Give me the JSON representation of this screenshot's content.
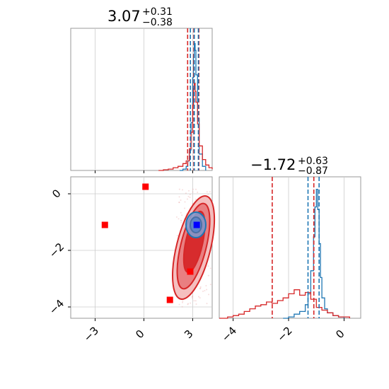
{
  "chart_data": [
    {
      "type": "histogram",
      "panel": "top-left",
      "title": {
        "value": "3.07",
        "plus": "+0.31",
        "minus": "−0.38"
      },
      "xlim": [
        -4.5,
        4.2
      ],
      "series": [
        {
          "name": "",
          "color": "#1f77b4",
          "peak_x": 3.1,
          "bins_x": [
            2.2,
            2.4,
            2.6,
            2.7,
            2.8,
            2.9,
            3.0,
            3.05,
            3.1,
            3.15,
            3.2,
            3.3,
            3.4,
            3.6,
            3.8
          ],
          "bins_y": [
            0,
            0.01,
            0.03,
            0.07,
            0.15,
            0.35,
            0.68,
            0.85,
            0.93,
            0.88,
            0.7,
            0.38,
            0.12,
            0.03,
            0
          ]
        },
        {
          "name": "",
          "color": "#d62728",
          "bins_x": [
            0.9,
            1.2,
            1.5,
            1.8,
            2.1,
            2.4,
            2.6,
            2.8,
            2.9,
            3.0,
            3.05,
            3.1,
            3.15,
            3.2,
            3.3,
            3.4,
            3.6,
            3.8,
            4.0,
            4.2
          ],
          "bins_y": [
            0,
            0.005,
            0.01,
            0.02,
            0.03,
            0.05,
            0.07,
            0.16,
            0.28,
            0.48,
            0.6,
            0.64,
            0.58,
            0.5,
            0.34,
            0.18,
            0.08,
            0.04,
            0.02,
            0.01
          ]
        }
      ],
      "vlines": [
        {
          "x": 2.69,
          "color": "#d62728"
        },
        {
          "x": 3.07,
          "color": "#d62728"
        },
        {
          "x": 3.38,
          "color": "#d62728"
        },
        {
          "x": 2.86,
          "color": "#1f77b4"
        },
        {
          "x": 3.1,
          "color": "#1f77b4"
        },
        {
          "x": 3.35,
          "color": "#1f77b4"
        }
      ]
    },
    {
      "type": "contour",
      "panel": "bottom-left",
      "xlim": [
        -4.5,
        4.2
      ],
      "ylim": [
        -4.4,
        0.6
      ],
      "xticks": [
        -3,
        0,
        3
      ],
      "xtick_labels": [
        "−3",
        "0",
        "3"
      ],
      "yticks": [
        -4,
        -2,
        0
      ],
      "ytick_labels": [
        "−4",
        "−2",
        "0"
      ],
      "markers": [
        {
          "x": -2.4,
          "y": -1.1,
          "color": "#ff0000"
        },
        {
          "x": 0.1,
          "y": 0.25,
          "color": "#ff0000"
        },
        {
          "x": 2.85,
          "y": -2.75,
          "color": "#ff0000"
        },
        {
          "x": 1.6,
          "y": -3.75,
          "color": "#ff0000"
        },
        {
          "x": 3.25,
          "y": -1.1,
          "color": "#0000ff"
        }
      ]
    },
    {
      "type": "histogram",
      "panel": "bottom-right",
      "title": {
        "value": "−1.72",
        "plus": "+0.63",
        "minus": "−0.87"
      },
      "xlim": [
        -4.5,
        0.6
      ],
      "xticks": [
        -4,
        -2,
        0
      ],
      "xtick_labels": [
        "−4",
        "−2",
        "0"
      ],
      "series": [
        {
          "name": "",
          "color": "#1f77b4",
          "bins_x": [
            -2.2,
            -2.0,
            -1.8,
            -1.6,
            -1.4,
            -1.3,
            -1.2,
            -1.1,
            -1.05,
            -1.0,
            -0.95,
            -0.9,
            -0.85,
            -0.8,
            -0.7,
            -0.6,
            -0.4,
            -0.2,
            0.0
          ],
          "bins_y": [
            0,
            0.01,
            0.03,
            0.05,
            0.1,
            0.18,
            0.35,
            0.6,
            0.82,
            0.95,
            0.8,
            0.55,
            0.3,
            0.15,
            0.07,
            0.04,
            0.02,
            0.01,
            0
          ]
        },
        {
          "name": "",
          "color": "#d62728",
          "bins_x": [
            -4.5,
            -4.2,
            -4.0,
            -3.8,
            -3.6,
            -3.4,
            -3.2,
            -3.0,
            -2.8,
            -2.6,
            -2.4,
            -2.2,
            -2.0,
            -1.8,
            -1.6,
            -1.4,
            -1.2,
            -1.0,
            -0.8,
            -0.6,
            -0.4,
            -0.2,
            0.0,
            0.2
          ],
          "bins_y": [
            0,
            0.01,
            0.02,
            0.03,
            0.05,
            0.07,
            0.09,
            0.1,
            0.12,
            0.11,
            0.13,
            0.15,
            0.18,
            0.21,
            0.17,
            0.19,
            0.14,
            0.08,
            0.06,
            0.04,
            0.02,
            0.01,
            0.01,
            0
          ]
        }
      ],
      "vlines": [
        {
          "x": -2.59,
          "color": "#d62728"
        },
        {
          "x": -1.09,
          "color": "#d62728"
        },
        {
          "x": -1.3,
          "color": "#1f77b4"
        },
        {
          "x": -0.9,
          "color": "#1f77b4"
        }
      ]
    }
  ]
}
